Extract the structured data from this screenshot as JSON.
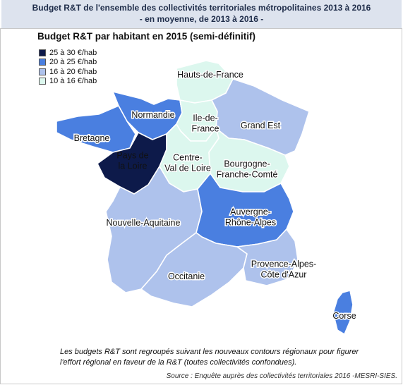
{
  "title": {
    "line1": "Budget R&T de l'ensemble des collectivités  territoriales métropolitaines 2013 à 2016",
    "line2": "- en moyenne, de 2013 à 2016 -"
  },
  "subtitle": "Budget R&T par habitant en 2015 (semi-définitif)",
  "legend": [
    {
      "label": "25 à 30 €/hab",
      "color": "#0d1a4a"
    },
    {
      "label": "20 à 25 €/hab",
      "color": "#4a7fe0"
    },
    {
      "label": "16 à 20 €/hab",
      "color": "#aec2ec"
    },
    {
      "label": "10 à 16 €/hab",
      "color": "#dcf7ee"
    }
  ],
  "regions": [
    {
      "name_lines": [
        "Hauts-de-France"
      ],
      "class": "10 à 16 €/hab"
    },
    {
      "name_lines": [
        "Normandie"
      ],
      "class": "20 à 25 €/hab"
    },
    {
      "name_lines": [
        "Ile-de-",
        "France"
      ],
      "class": "10 à 16 €/hab"
    },
    {
      "name_lines": [
        "Grand Est"
      ],
      "class": "16 à 20 €/hab"
    },
    {
      "name_lines": [
        "Bretagne"
      ],
      "class": "20 à 25 €/hab"
    },
    {
      "name_lines": [
        "Pays de",
        "la Loire"
      ],
      "class": "25 à 30 €/hab"
    },
    {
      "name_lines": [
        "Centre-",
        "Val de Loire"
      ],
      "class": "10 à 16 €/hab"
    },
    {
      "name_lines": [
        "Bourgogne-",
        "Franche-Comté"
      ],
      "class": "10 à 16 €/hab"
    },
    {
      "name_lines": [
        "Nouvelle-Aquitaine"
      ],
      "class": "16 à 20 €/hab"
    },
    {
      "name_lines": [
        "Auvergne-",
        "Rhône-Alpes"
      ],
      "class": "20 à 25 €/hab"
    },
    {
      "name_lines": [
        "Occitanie"
      ],
      "class": "16 à 20 €/hab"
    },
    {
      "name_lines": [
        "Provence-Alpes-",
        "Côte d'Azur"
      ],
      "class": "16 à 20 €/hab"
    },
    {
      "name_lines": [
        "Corse"
      ],
      "class": "20 à 25 €/hab"
    }
  ],
  "note": {
    "line1": "Les budgets R&T sont regroupés suivant les nouveaux contours régionaux pour figurer",
    "line2": "l'effort régional en faveur de la R&T (toutes collectivités confondues)."
  },
  "source": "Source : Enquête auprès des collectivités territoriales 2016 -MESRI-SIES."
}
